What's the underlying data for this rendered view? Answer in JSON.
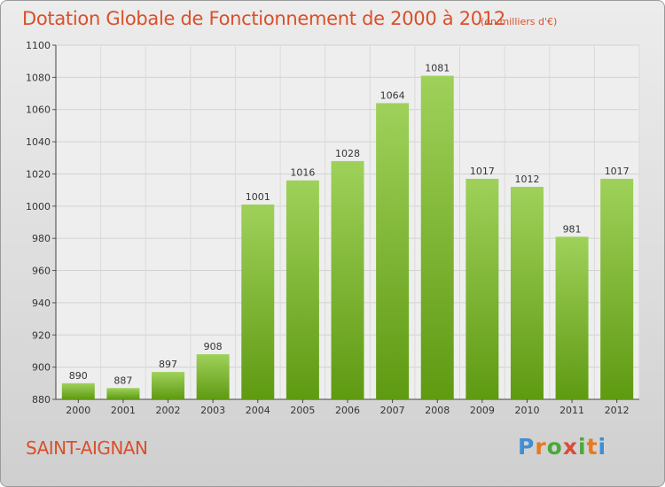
{
  "header": {
    "title": "Dotation Globale de Fonctionnement de 2000 à 2012",
    "unit": "(en milliers d'€)"
  },
  "footer": {
    "commune": "SAINT-AIGNAN",
    "logo_text": "Proxiti"
  },
  "colors": {
    "title": "#d9502a",
    "bar_light": "#9fd15a",
    "bar_dark": "#5f9a12",
    "logo_blue": "#3f8fd2",
    "logo_orange": "#e87a1f",
    "logo_green": "#4aa83a",
    "logo_red": "#d94c3a"
  },
  "chart_data": {
    "type": "bar",
    "title": "Dotation Globale de Fonctionnement de 2000 à 2012",
    "xlabel": "",
    "ylabel": "",
    "categories": [
      "2000",
      "2001",
      "2002",
      "2003",
      "2004",
      "2005",
      "2006",
      "2007",
      "2008",
      "2009",
      "2010",
      "2011",
      "2012"
    ],
    "values": [
      890,
      887,
      897,
      908,
      1001,
      1016,
      1028,
      1064,
      1081,
      1017,
      1012,
      981,
      1017
    ],
    "ylim": [
      880,
      1100
    ],
    "yticks": [
      880,
      900,
      920,
      940,
      960,
      980,
      1000,
      1020,
      1040,
      1060,
      1080,
      1100
    ],
    "grid": true
  }
}
